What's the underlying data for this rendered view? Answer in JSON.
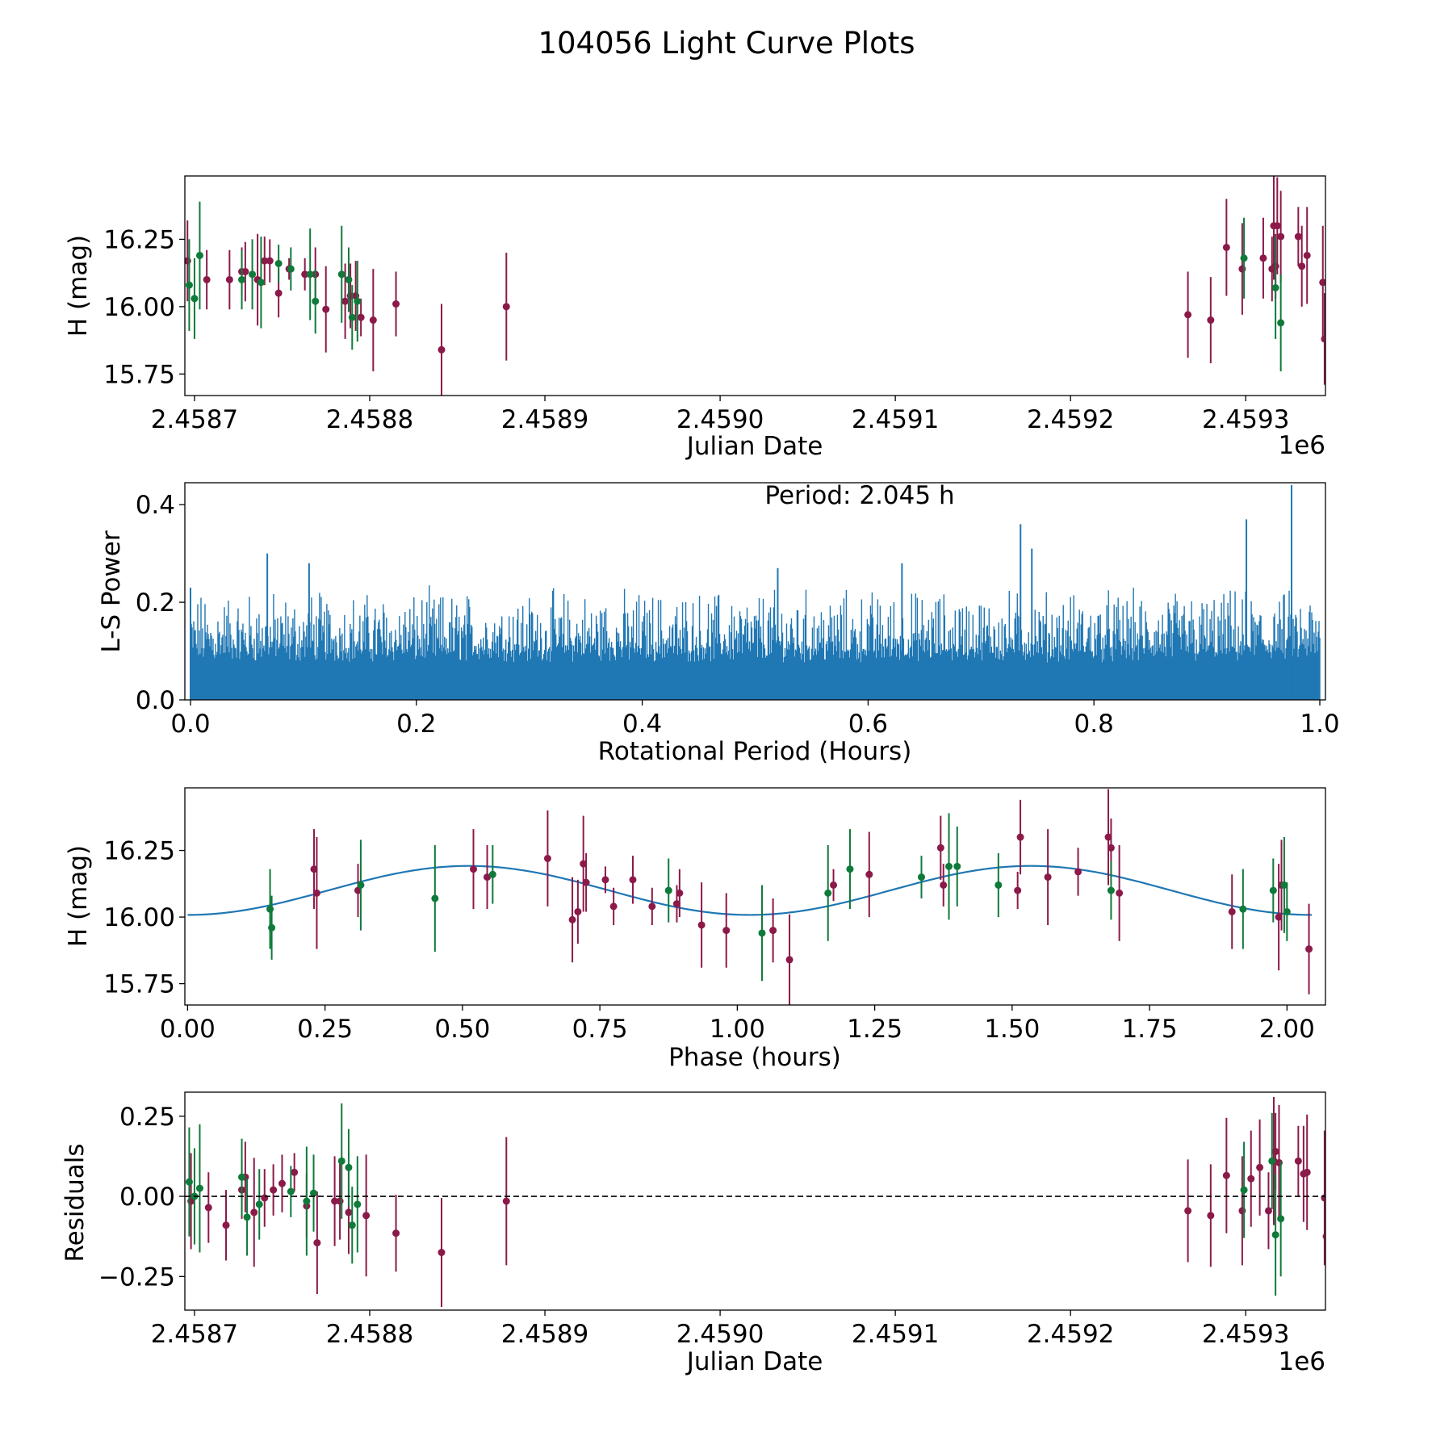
{
  "figure_title": "104056 Light Curve Plots",
  "colors": {
    "band_a": "#8b1a4a",
    "band_b": "#0f7a3a",
    "line": "#1f77b4",
    "zero_line": "#000000"
  },
  "chart_data": [
    {
      "id": "lc",
      "type": "scatter",
      "title": "",
      "xlabel": "Julian Date",
      "ylabel": "H (mag)",
      "x_offset_label": "1e6",
      "xlim": [
        2458694.5,
        2459345.5
      ],
      "ylim": [
        15.67,
        16.485
      ],
      "xticks": [
        2458700,
        2458800,
        2458900,
        2459000,
        2459100,
        2459200,
        2459300
      ],
      "xtick_labels": [
        "2.4587",
        "2.4588",
        "2.4589",
        "2.4590",
        "2.4591",
        "2.4592",
        "2.4593"
      ],
      "yticks": [
        15.75,
        16.0,
        16.25
      ],
      "ytick_labels": [
        "15.75",
        "16.00",
        "16.25"
      ],
      "series": [
        {
          "name": "band_a",
          "color": "#8b1a4a",
          "x": [
            2458696,
            2458707,
            2458720,
            2458727,
            2458729,
            2458736,
            2458740,
            2458743,
            2458748,
            2458754,
            2458763,
            2458769,
            2458775,
            2458786,
            2458789,
            2458792,
            2458795,
            2458802,
            2458815,
            2458841,
            2458878,
            2459267,
            2459280,
            2459289,
            2459298,
            2459310,
            2459315,
            2459316,
            2459317,
            2459318,
            2459320,
            2459330,
            2459332,
            2459335,
            2459344,
            2459345
          ],
          "y": [
            16.17,
            16.1,
            16.1,
            16.13,
            16.13,
            16.1,
            16.17,
            16.17,
            16.05,
            16.14,
            16.12,
            16.12,
            15.99,
            16.02,
            16.04,
            16.04,
            15.96,
            15.95,
            16.01,
            15.84,
            16.0,
            15.97,
            15.95,
            16.22,
            16.14,
            16.18,
            16.14,
            16.3,
            16.15,
            16.3,
            16.26,
            16.26,
            16.15,
            16.19,
            16.09,
            15.88
          ],
          "err": [
            0.15,
            0.11,
            0.11,
            0.09,
            0.11,
            0.17,
            0.09,
            0.08,
            0.09,
            0.04,
            0.06,
            0.1,
            0.16,
            0.14,
            0.12,
            0.13,
            0.07,
            0.19,
            0.12,
            0.17,
            0.2,
            0.16,
            0.16,
            0.18,
            0.17,
            0.15,
            0.12,
            0.2,
            0.12,
            0.18,
            0.17,
            0.11,
            0.15,
            0.18,
            0.21,
            0.17
          ]
        },
        {
          "name": "band_b",
          "color": "#0f7a3a",
          "x": [
            2458697,
            2458700,
            2458703,
            2458727,
            2458733,
            2458738,
            2458748,
            2458755,
            2458766,
            2458769,
            2458784,
            2458788,
            2458790,
            2458793
          ],
          "y": [
            16.08,
            16.03,
            16.19,
            16.1,
            16.12,
            16.09,
            16.16,
            16.14,
            16.12,
            16.02,
            16.12,
            16.1,
            15.96,
            16.02
          ],
          "err": [
            0.17,
            0.15,
            0.2,
            0.11,
            0.13,
            0.17,
            0.07,
            0.08,
            0.17,
            0.12,
            0.18,
            0.12,
            0.12,
            0.15
          ]
        },
        {
          "name": "band_b_late",
          "color": "#0f7a3a",
          "x": [
            2459299,
            2459317,
            2459320
          ],
          "y": [
            16.18,
            16.07,
            15.94
          ],
          "err": [
            0.15,
            0.19,
            0.18
          ]
        }
      ]
    },
    {
      "id": "ls",
      "type": "line",
      "title": "",
      "xlabel": "Rotational Period (Hours)",
      "ylabel": "L-S Power",
      "xlim": [
        -0.005,
        1.005
      ],
      "ylim": [
        0,
        0.445
      ],
      "xticks": [
        0.0,
        0.2,
        0.4,
        0.6,
        0.8,
        1.0
      ],
      "xtick_labels": [
        "0.0",
        "0.2",
        "0.4",
        "0.6",
        "0.8",
        "1.0"
      ],
      "yticks": [
        0.0,
        0.2,
        0.4
      ],
      "ytick_labels": [
        "0.0",
        "0.2",
        "0.4"
      ],
      "annotation": "Period: 2.045 h",
      "series": [
        {
          "name": "L-S Power",
          "color": "#1f77b4",
          "x_range": [
            0.0,
            1.0
          ],
          "typical_power": 0.2,
          "peaks": [
            [
              0.0,
              0.23
            ],
            [
              0.068,
              0.3
            ],
            [
              0.105,
              0.28
            ],
            [
              0.52,
              0.27
            ],
            [
              0.63,
              0.28
            ],
            [
              0.745,
              0.31
            ],
            [
              0.735,
              0.36
            ],
            [
              0.935,
              0.37
            ],
            [
              0.975,
              0.44
            ]
          ]
        }
      ]
    },
    {
      "id": "phase",
      "type": "scatter",
      "title": "",
      "xlabel": "Phase (hours)",
      "ylabel": "H (mag)",
      "xlim": [
        -0.005,
        2.07
      ],
      "ylim": [
        15.67,
        16.485
      ],
      "xticks": [
        0.0,
        0.25,
        0.5,
        0.75,
        1.0,
        1.25,
        1.5,
        1.75,
        2.0
      ],
      "xtick_labels": [
        "0.00",
        "0.25",
        "0.50",
        "0.75",
        "1.00",
        "1.25",
        "1.50",
        "1.75",
        "2.00"
      ],
      "yticks": [
        15.75,
        16.0,
        16.25
      ],
      "ytick_labels": [
        "15.75",
        "16.00",
        "16.25"
      ],
      "model": {
        "name": "fit",
        "color": "#1f77b4",
        "mean": 16.1,
        "amplitude": 0.092,
        "period": 1.0225,
        "x_range": [
          0.0,
          2.045
        ]
      },
      "series": [
        {
          "name": "band_a",
          "color": "#8b1a4a",
          "x": [
            0.23,
            0.235,
            0.31,
            0.52,
            0.545,
            0.655,
            0.7,
            0.71,
            0.72,
            0.725,
            0.76,
            0.775,
            0.81,
            0.845,
            0.89,
            0.895,
            0.935,
            0.98,
            1.065,
            1.095,
            1.175,
            1.24,
            1.37,
            1.375,
            1.51,
            1.515,
            1.565,
            1.62,
            1.675,
            1.68,
            1.695,
            1.9,
            1.985,
            1.99,
            2.04
          ],
          "y": [
            16.18,
            16.09,
            16.1,
            16.18,
            16.15,
            16.22,
            15.99,
            16.02,
            16.2,
            16.13,
            16.14,
            16.04,
            16.14,
            16.04,
            16.05,
            16.09,
            15.97,
            15.95,
            15.95,
            15.84,
            16.12,
            16.16,
            16.26,
            16.12,
            16.1,
            16.3,
            16.15,
            16.17,
            16.3,
            16.26,
            16.09,
            16.02,
            16.0,
            16.12,
            15.88
          ],
          "err": [
            0.15,
            0.21,
            0.1,
            0.15,
            0.12,
            0.18,
            0.16,
            0.12,
            0.18,
            0.11,
            0.05,
            0.07,
            0.09,
            0.07,
            0.07,
            0.09,
            0.16,
            0.14,
            0.12,
            0.17,
            0.06,
            0.16,
            0.12,
            0.08,
            0.07,
            0.14,
            0.18,
            0.09,
            0.18,
            0.11,
            0.18,
            0.14,
            0.2,
            0.17,
            0.17
          ]
        },
        {
          "name": "band_b",
          "color": "#0f7a3a",
          "x": [
            0.15,
            0.153,
            0.315,
            0.45,
            0.555,
            0.875,
            1.045,
            1.165,
            1.205,
            1.335,
            1.385,
            1.4,
            1.475,
            1.68,
            1.92,
            1.975,
            1.995,
            2.0
          ],
          "y": [
            16.03,
            15.96,
            16.12,
            16.07,
            16.16,
            16.1,
            15.94,
            16.09,
            16.18,
            16.15,
            16.19,
            16.19,
            16.12,
            16.1,
            16.03,
            16.1,
            16.12,
            16.02
          ],
          "err": [
            0.15,
            0.12,
            0.17,
            0.2,
            0.11,
            0.12,
            0.18,
            0.18,
            0.15,
            0.08,
            0.2,
            0.15,
            0.12,
            0.11,
            0.15,
            0.12,
            0.18,
            0.11
          ]
        }
      ]
    },
    {
      "id": "resid",
      "type": "scatter",
      "title": "",
      "xlabel": "Julian Date",
      "ylabel": "Residuals",
      "x_offset_label": "1e6",
      "xlim": [
        2458694.5,
        2459345.5
      ],
      "ylim": [
        -0.355,
        0.325
      ],
      "xticks": [
        2458700,
        2458800,
        2458900,
        2459000,
        2459100,
        2459200,
        2459300
      ],
      "xtick_labels": [
        "2.4587",
        "2.4588",
        "2.4589",
        "2.4590",
        "2.4591",
        "2.4592",
        "2.4593"
      ],
      "yticks": [
        -0.25,
        0.0,
        0.25
      ],
      "ytick_labels": [
        "−0.25",
        "0.00",
        "0.25"
      ],
      "reference_line": 0.0,
      "series": [
        {
          "name": "band_a",
          "color": "#8b1a4a",
          "x": [
            2458698,
            2458708,
            2458718,
            2458727,
            2458729,
            2458734,
            2458740,
            2458745,
            2458750,
            2458757,
            2458764,
            2458770,
            2458780,
            2458783,
            2458788,
            2458798,
            2458815,
            2458841,
            2458878,
            2459267,
            2459280,
            2459289,
            2459298,
            2459303,
            2459308,
            2459313,
            2459316,
            2459317,
            2459319,
            2459330,
            2459333,
            2459335,
            2459345,
            2459346
          ],
          "y": [
            -0.015,
            -0.035,
            -0.09,
            0.02,
            0.06,
            -0.05,
            -0.005,
            0.02,
            0.04,
            0.075,
            -0.03,
            -0.145,
            -0.015,
            -0.015,
            -0.05,
            -0.06,
            -0.115,
            -0.175,
            -0.015,
            -0.045,
            -0.06,
            0.065,
            -0.045,
            0.055,
            0.09,
            -0.045,
            0.11,
            0.14,
            0.105,
            0.11,
            0.07,
            0.075,
            -0.005,
            -0.125
          ],
          "err": [
            0.15,
            0.11,
            0.11,
            0.09,
            0.11,
            0.17,
            0.09,
            0.08,
            0.09,
            0.06,
            0.1,
            0.16,
            0.14,
            0.12,
            0.13,
            0.19,
            0.12,
            0.17,
            0.2,
            0.16,
            0.16,
            0.18,
            0.17,
            0.15,
            0.15,
            0.12,
            0.2,
            0.12,
            0.18,
            0.11,
            0.15,
            0.18,
            0.21,
            0.17
          ]
        },
        {
          "name": "band_b",
          "color": "#0f7a3a",
          "x": [
            2458697,
            2458700,
            2458703,
            2458727,
            2458730,
            2458737,
            2458755,
            2458764,
            2458768,
            2458784,
            2458788,
            2458790,
            2458793,
            2459299,
            2459315,
            2459317,
            2459320
          ],
          "y": [
            0.045,
            0.0,
            0.025,
            0.06,
            -0.065,
            -0.025,
            0.015,
            -0.015,
            0.01,
            0.11,
            0.09,
            -0.09,
            -0.025,
            0.02,
            0.11,
            -0.12,
            -0.07
          ],
          "err": [
            0.17,
            0.15,
            0.2,
            0.12,
            0.12,
            0.11,
            0.08,
            0.17,
            0.12,
            0.18,
            0.12,
            0.12,
            0.15,
            0.15,
            0.15,
            0.19,
            0.18
          ]
        }
      ]
    }
  ]
}
